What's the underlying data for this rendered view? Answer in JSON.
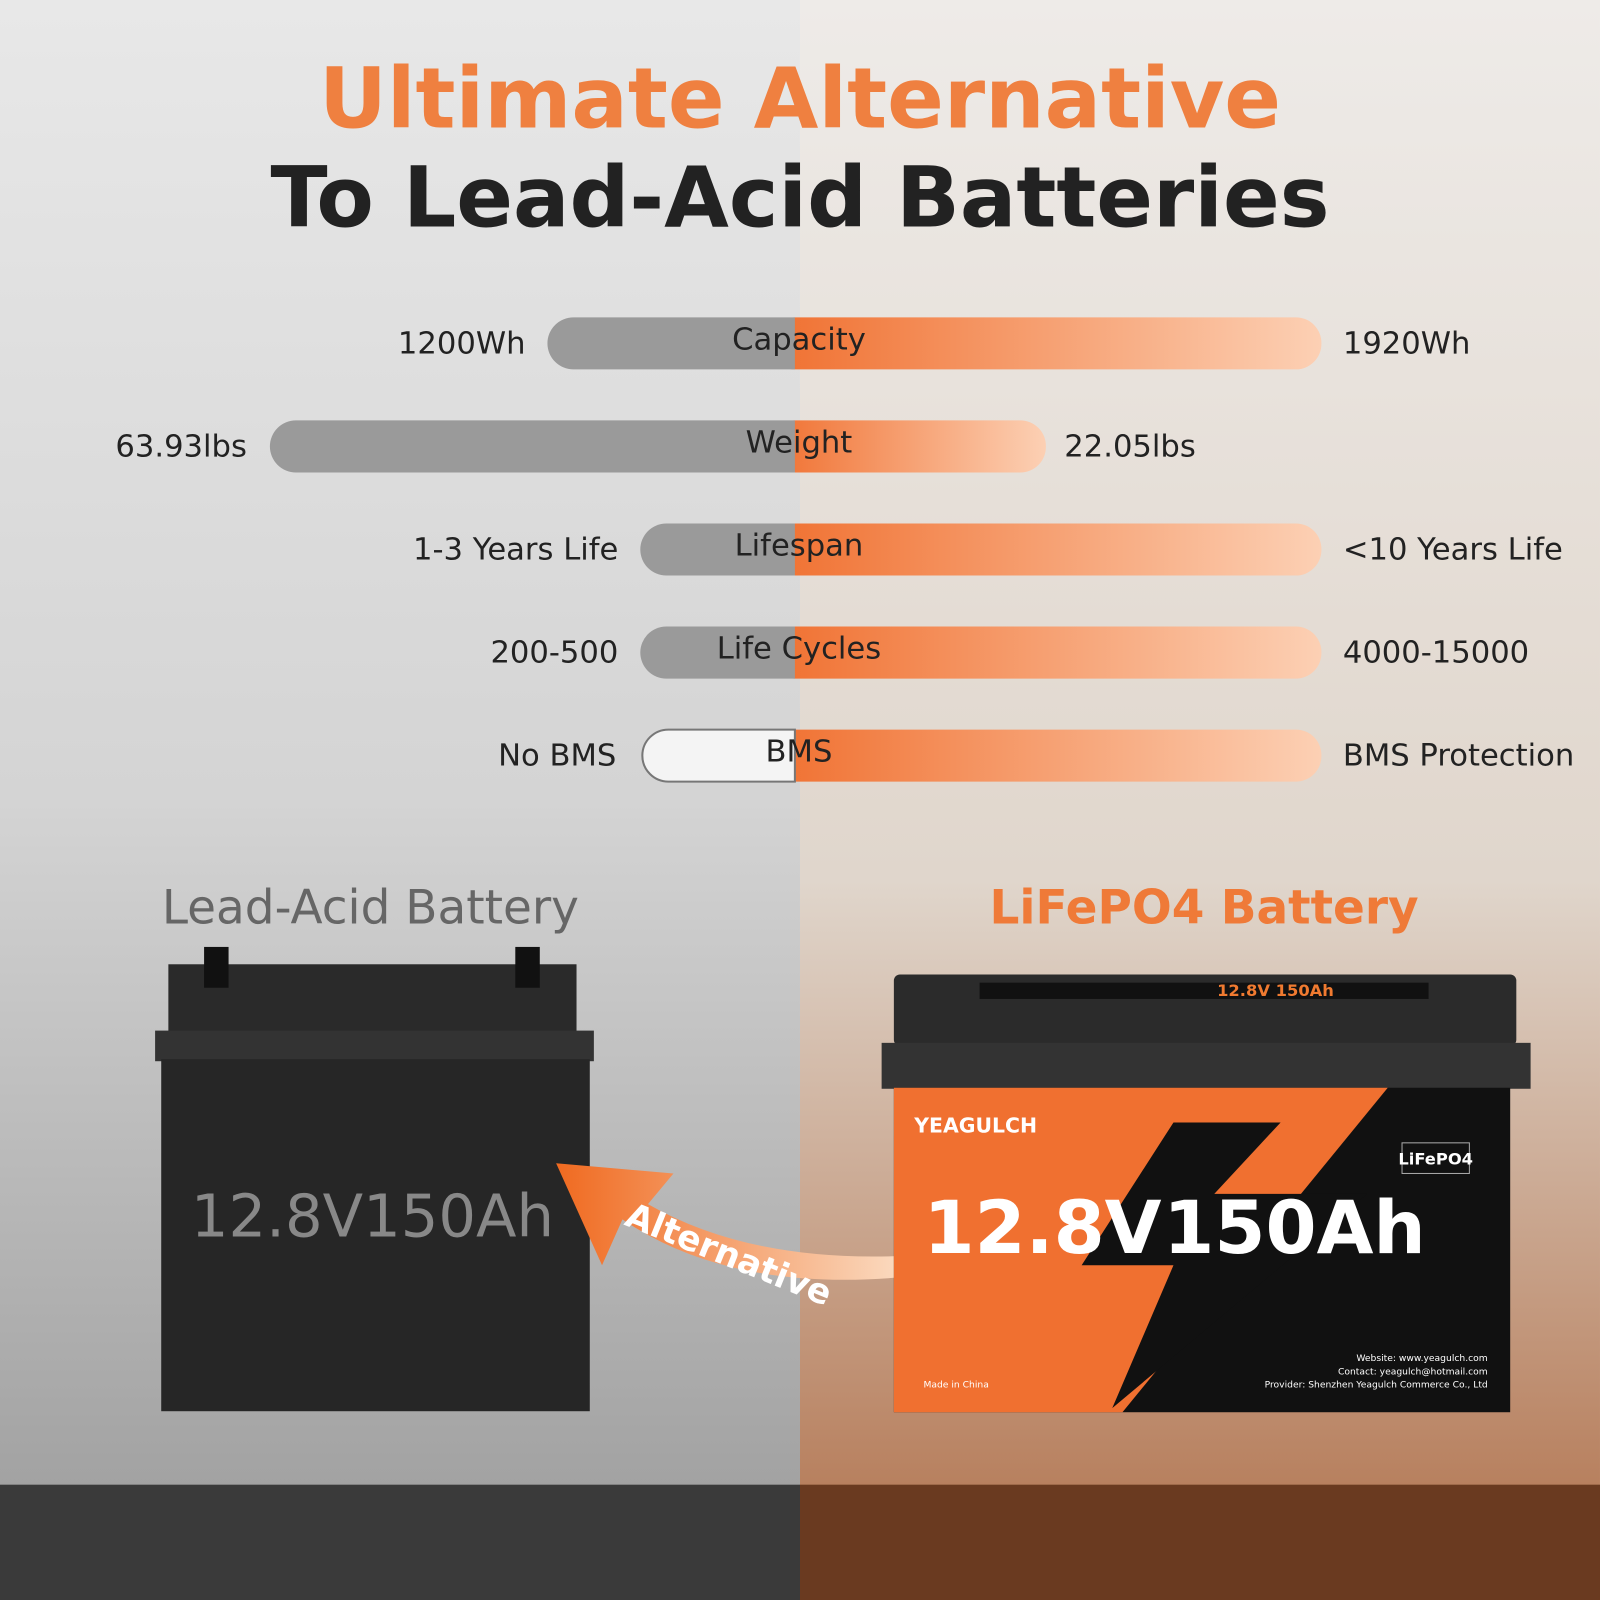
{
  "header": {
    "title_line1": "Ultimate Alternative",
    "title_line2": "To Lead-Acid Batteries"
  },
  "comparison": {
    "rows": [
      {
        "label": "Capacity",
        "lead_acid": "1200Wh",
        "lifepo4": "1920Wh"
      },
      {
        "label": "Weight",
        "lead_acid": "63.93lbs",
        "lifepo4": "22.05lbs"
      },
      {
        "label": "Lifespan",
        "lead_acid": "1-3 Years Life",
        "lifepo4": "<10 Years Life"
      },
      {
        "label": "Life Cycles",
        "lead_acid": "200-500",
        "lifepo4": "4000-15000"
      },
      {
        "label": "BMS",
        "lead_acid": "No BMS",
        "lifepo4": "BMS Protection"
      }
    ]
  },
  "lead_acid_battery": {
    "title": "Lead-Acid Battery",
    "label": "12.8V150Ah"
  },
  "arrow": {
    "label": "Alternative"
  },
  "lifepo4_battery": {
    "title": "LiFePO4 Battery",
    "brand": "YEAGULCH",
    "chemistry": "LiFePO4",
    "lid_label": "12.8V 150Ah",
    "voltage": "12.8V",
    "capacity": "150Ah",
    "made_in": "Made in China",
    "info": [
      "Website: www.yeagulch.com",
      "Contact: yeagulch@hotmail.com",
      "Provider: Shenzhen Yeagulch Commerce Co., Ltd"
    ]
  }
}
